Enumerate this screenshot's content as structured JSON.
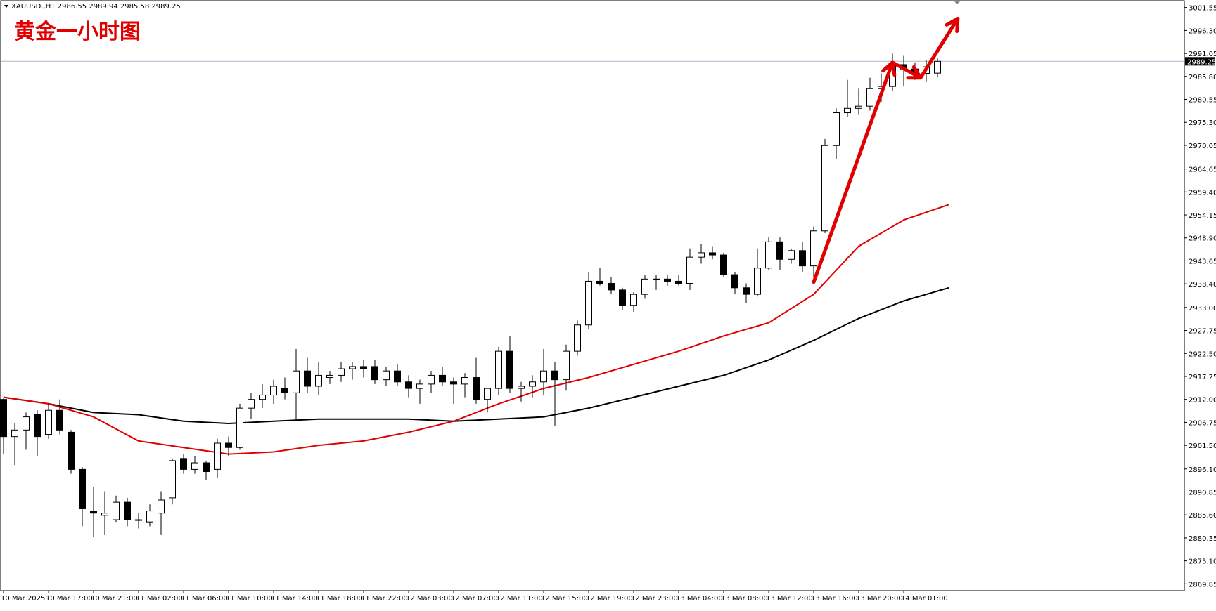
{
  "header": {
    "symbol_info": "XAUUSD.,H1  2986.55 2989.94 2985.58 2989.25",
    "title": "黄金一小时图"
  },
  "colors": {
    "background": "#ffffff",
    "candle_up_fill": "#ffffff",
    "candle_down_fill": "#000000",
    "ma_fast": "#e00000",
    "ma_slow": "#000000",
    "arrow": "#e00000",
    "price_line": "#a8b8c8"
  },
  "chart_data": {
    "type": "candlestick",
    "ylim": [
      2868.3,
      3003.1
    ],
    "current_price": 2989.25,
    "current_price_label": "2989.25",
    "y_ticks": [
      "3001.55",
      "2996.30",
      "2991.05",
      "2985.80",
      "2980.55",
      "2975.30",
      "2970.05",
      "2964.65",
      "2959.40",
      "2954.15",
      "2948.90",
      "2943.65",
      "2938.40",
      "2933.00",
      "2927.75",
      "2922.50",
      "2917.25",
      "2912.00",
      "2906.75",
      "2901.50",
      "2896.10",
      "2890.85",
      "2885.60",
      "2880.35",
      "2875.10",
      "2869.85"
    ],
    "x_ticks": [
      {
        "index": 0,
        "label": "10 Mar 2025"
      },
      {
        "index": 4,
        "label": "10 Mar 17:00"
      },
      {
        "index": 8,
        "label": "10 Mar 21:00"
      },
      {
        "index": 12,
        "label": "11 Mar 02:00"
      },
      {
        "index": 16,
        "label": "11 Mar 06:00"
      },
      {
        "index": 20,
        "label": "11 Mar 10:00"
      },
      {
        "index": 24,
        "label": "11 Mar 14:00"
      },
      {
        "index": 28,
        "label": "11 Mar 18:00"
      },
      {
        "index": 32,
        "label": "11 Mar 22:00"
      },
      {
        "index": 36,
        "label": "12 Mar 03:00"
      },
      {
        "index": 40,
        "label": "12 Mar 07:00"
      },
      {
        "index": 44,
        "label": "12 Mar 11:00"
      },
      {
        "index": 48,
        "label": "12 Mar 15:00"
      },
      {
        "index": 52,
        "label": "12 Mar 19:00"
      },
      {
        "index": 56,
        "label": "12 Mar 23:00"
      },
      {
        "index": 60,
        "label": "13 Mar 04:00"
      },
      {
        "index": 64,
        "label": "13 Mar 08:00"
      },
      {
        "index": 68,
        "label": "13 Mar 12:00"
      },
      {
        "index": 72,
        "label": "13 Mar 16:00"
      },
      {
        "index": 76,
        "label": "13 Mar 20:00"
      },
      {
        "index": 80,
        "label": "14 Mar 01:00"
      }
    ],
    "candles": [
      [
        2912.0,
        2912.5,
        2899.5,
        2903.5
      ],
      [
        2903.5,
        2906.5,
        2897.0,
        2905.0
      ],
      [
        2905.0,
        2909.0,
        2900.5,
        2908.0
      ],
      [
        2908.5,
        2909.5,
        2899.0,
        2903.5
      ],
      [
        2904.0,
        2911.0,
        2903.0,
        2909.5
      ],
      [
        2909.5,
        2912.0,
        2904.0,
        2905.0
      ],
      [
        2904.5,
        2905.0,
        2895.0,
        2896.0
      ],
      [
        2896.0,
        2896.5,
        2883.0,
        2887.0
      ],
      [
        2886.5,
        2892.0,
        2880.5,
        2886.0
      ],
      [
        2885.5,
        2891.0,
        2881.0,
        2886.0
      ],
      [
        2884.5,
        2890.0,
        2884.0,
        2888.5
      ],
      [
        2888.5,
        2889.5,
        2883.0,
        2884.5
      ],
      [
        2884.5,
        2886.0,
        2882.5,
        2884.5
      ],
      [
        2884.0,
        2888.0,
        2883.0,
        2886.5
      ],
      [
        2886.0,
        2891.0,
        2881.0,
        2889.0
      ],
      [
        2889.5,
        2898.5,
        2888.0,
        2898.0
      ],
      [
        2898.5,
        2899.5,
        2895.0,
        2896.0
      ],
      [
        2896.0,
        2899.0,
        2895.0,
        2897.5
      ],
      [
        2897.5,
        2898.0,
        2893.5,
        2895.5
      ],
      [
        2896.0,
        2903.0,
        2894.0,
        2902.0
      ],
      [
        2902.0,
        2903.5,
        2899.0,
        2901.0
      ],
      [
        2901.0,
        2911.0,
        2900.5,
        2910.0
      ],
      [
        2910.0,
        2913.5,
        2907.5,
        2912.0
      ],
      [
        2912.0,
        2915.5,
        2910.0,
        2913.0
      ],
      [
        2913.0,
        2916.5,
        2911.0,
        2915.0
      ],
      [
        2914.5,
        2917.0,
        2912.0,
        2913.5
      ],
      [
        2913.5,
        2923.5,
        2907.0,
        2918.5
      ],
      [
        2918.5,
        2921.5,
        2913.5,
        2915.0
      ],
      [
        2915.0,
        2920.5,
        2913.0,
        2917.5
      ],
      [
        2917.0,
        2918.5,
        2915.5,
        2917.5
      ],
      [
        2917.5,
        2920.5,
        2916.0,
        2919.0
      ],
      [
        2919.0,
        2920.5,
        2916.5,
        2919.5
      ],
      [
        2919.5,
        2921.0,
        2917.0,
        2919.0
      ],
      [
        2919.5,
        2921.0,
        2915.5,
        2916.5
      ],
      [
        2916.5,
        2919.5,
        2915.0,
        2918.5
      ],
      [
        2918.5,
        2920.0,
        2915.0,
        2916.0
      ],
      [
        2916.0,
        2917.5,
        2912.5,
        2914.5
      ],
      [
        2914.5,
        2916.5,
        2911.0,
        2915.5
      ],
      [
        2915.5,
        2918.5,
        2913.5,
        2917.5
      ],
      [
        2917.5,
        2919.5,
        2915.0,
        2916.0
      ],
      [
        2916.0,
        2917.0,
        2911.0,
        2915.5
      ],
      [
        2915.5,
        2918.0,
        2912.5,
        2917.0
      ],
      [
        2917.0,
        2921.5,
        2911.0,
        2912.0
      ],
      [
        2912.0,
        2914.5,
        2909.0,
        2914.5
      ],
      [
        2914.5,
        2924.0,
        2913.0,
        2923.0
      ],
      [
        2923.0,
        2926.5,
        2913.5,
        2914.5
      ],
      [
        2914.5,
        2916.0,
        2911.5,
        2915.0
      ],
      [
        2915.0,
        2917.5,
        2912.5,
        2916.0
      ],
      [
        2916.0,
        2923.5,
        2913.0,
        2918.5
      ],
      [
        2918.5,
        2920.5,
        2906.0,
        2916.5
      ],
      [
        2916.5,
        2924.5,
        2914.0,
        2923.0
      ],
      [
        2923.0,
        2930.0,
        2922.0,
        2929.0
      ],
      [
        2929.0,
        2941.0,
        2928.0,
        2939.0
      ],
      [
        2939.0,
        2942.0,
        2938.0,
        2938.5
      ],
      [
        2938.5,
        2940.0,
        2936.0,
        2937.0
      ],
      [
        2937.0,
        2937.5,
        2932.5,
        2933.5
      ],
      [
        2933.5,
        2936.5,
        2932.0,
        2936.0
      ],
      [
        2936.0,
        2940.5,
        2935.0,
        2939.5
      ],
      [
        2939.5,
        2940.5,
        2937.0,
        2939.5
      ],
      [
        2939.5,
        2940.5,
        2938.0,
        2939.0
      ],
      [
        2939.0,
        2940.5,
        2938.0,
        2938.5
      ],
      [
        2938.5,
        2946.5,
        2937.0,
        2944.5
      ],
      [
        2944.5,
        2947.5,
        2943.0,
        2945.5
      ],
      [
        2945.5,
        2947.0,
        2944.0,
        2945.0
      ],
      [
        2945.0,
        2945.5,
        2940.0,
        2940.5
      ],
      [
        2940.5,
        2941.0,
        2936.0,
        2937.5
      ],
      [
        2937.5,
        2938.5,
        2934.0,
        2936.0
      ],
      [
        2936.0,
        2946.5,
        2935.5,
        2942.0
      ],
      [
        2942.0,
        2949.0,
        2941.5,
        2948.0
      ],
      [
        2948.0,
        2949.0,
        2941.5,
        2944.0
      ],
      [
        2944.0,
        2946.5,
        2943.0,
        2946.0
      ],
      [
        2946.0,
        2948.0,
        2941.0,
        2942.5
      ],
      [
        2942.5,
        2951.5,
        2940.0,
        2950.5
      ],
      [
        2950.5,
        2971.5,
        2950.0,
        2970.0
      ],
      [
        2970.0,
        2978.5,
        2967.0,
        2977.5
      ],
      [
        2977.5,
        2985.0,
        2976.5,
        2978.5
      ],
      [
        2978.5,
        2983.0,
        2977.0,
        2979.0
      ],
      [
        2979.0,
        2985.5,
        2978.0,
        2983.0
      ],
      [
        2983.0,
        2986.5,
        2980.0,
        2983.5
      ],
      [
        2983.5,
        2991.0,
        2982.5,
        2988.5
      ],
      [
        2988.5,
        2990.5,
        2983.5,
        2987.5
      ],
      [
        2987.5,
        2989.0,
        2985.0,
        2986.5
      ],
      [
        2986.5,
        2989.5,
        2984.5,
        2988.0
      ],
      [
        2986.55,
        2989.94,
        2985.58,
        2989.25
      ]
    ],
    "ma_fast": [
      [
        0,
        2912.5
      ],
      [
        4,
        2911.0
      ],
      [
        8,
        2908.0
      ],
      [
        12,
        2902.5
      ],
      [
        16,
        2901.0
      ],
      [
        20,
        2899.5
      ],
      [
        24,
        2900.0
      ],
      [
        28,
        2901.5
      ],
      [
        32,
        2902.5
      ],
      [
        36,
        2904.5
      ],
      [
        40,
        2907.0
      ],
      [
        44,
        2911.0
      ],
      [
        48,
        2914.5
      ],
      [
        52,
        2917.0
      ],
      [
        56,
        2920.0
      ],
      [
        60,
        2923.0
      ],
      [
        64,
        2926.5
      ],
      [
        68,
        2929.5
      ],
      [
        72,
        2936.0
      ],
      [
        76,
        2947.0
      ],
      [
        80,
        2953.0
      ],
      [
        84,
        2956.5
      ]
    ],
    "ma_slow": [
      [
        0,
        2912.5
      ],
      [
        4,
        2911.0
      ],
      [
        8,
        2909.0
      ],
      [
        12,
        2908.5
      ],
      [
        16,
        2907.0
      ],
      [
        20,
        2906.5
      ],
      [
        24,
        2907.0
      ],
      [
        28,
        2907.5
      ],
      [
        32,
        2907.5
      ],
      [
        36,
        2907.5
      ],
      [
        40,
        2907.0
      ],
      [
        44,
        2907.5
      ],
      [
        48,
        2908.0
      ],
      [
        52,
        2910.0
      ],
      [
        56,
        2912.5
      ],
      [
        60,
        2915.0
      ],
      [
        64,
        2917.5
      ],
      [
        68,
        2921.0
      ],
      [
        72,
        2925.5
      ],
      [
        76,
        2930.5
      ],
      [
        80,
        2934.5
      ],
      [
        84,
        2937.5
      ]
    ],
    "arrows": [
      [
        [
          72,
          2938.8
        ],
        [
          79,
          2989.0
        ],
        [
          81.5,
          2985.5
        ],
        [
          84.8,
          2999.0
        ]
      ]
    ]
  }
}
